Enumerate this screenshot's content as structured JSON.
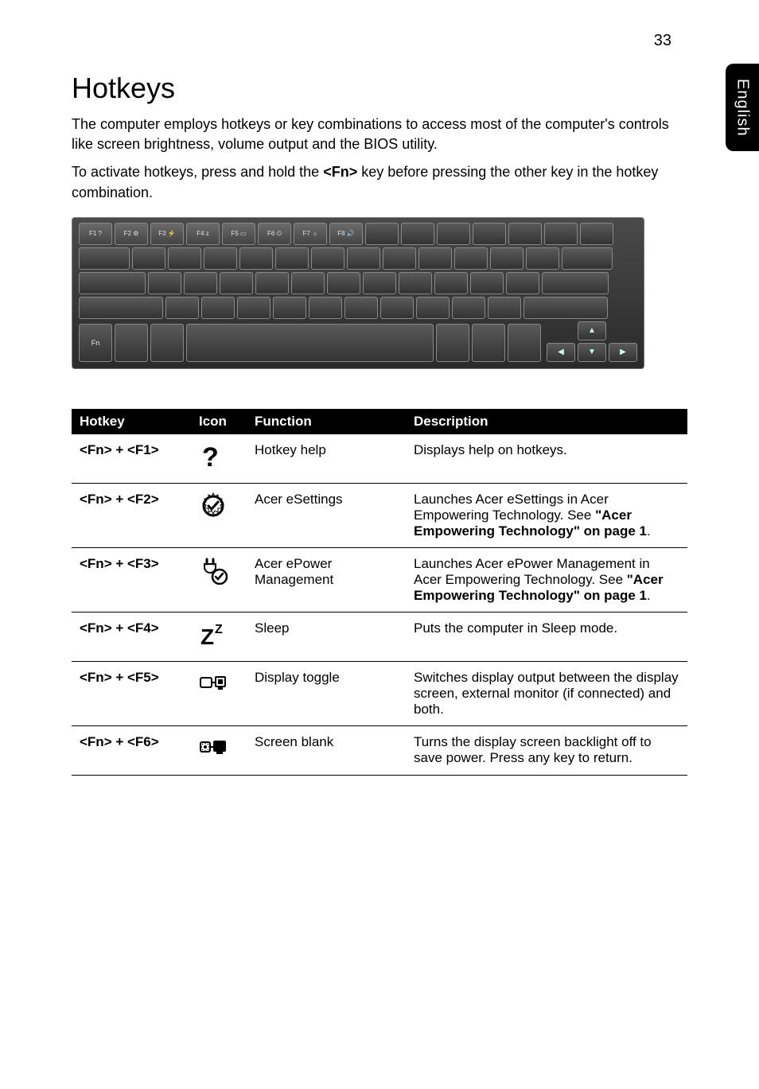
{
  "page": {
    "number": "33",
    "side_tab": "English",
    "heading": "Hotkeys",
    "intro1": "The computer employs hotkeys or key combinations to access most of the computer's controls like screen brightness, volume output and the BIOS utility.",
    "intro2_a": "To activate hotkeys, press and hold the ",
    "intro2_key": "<Fn>",
    "intro2_b": " key before pressing the other key in the hotkey combination."
  },
  "table": {
    "headers": {
      "hotkey": "Hotkey",
      "icon": "Icon",
      "func": "Function",
      "desc": "Description"
    },
    "rows": [
      {
        "hotkey": "<Fn> + <F1>",
        "icon": "question",
        "func": "Hotkey help",
        "desc_plain": "Displays help on hotkeys."
      },
      {
        "hotkey": "<Fn> + <F2>",
        "icon": "gear-check",
        "func": "Acer eSettings",
        "desc_pre": "Launches Acer eSettings in Acer Empowering Technology. See ",
        "desc_bold": "\"Acer Empowering Technology\" on page 1",
        "desc_post": "."
      },
      {
        "hotkey": "<Fn> + <F3>",
        "icon": "plug-check",
        "func": "Acer ePower Management",
        "desc_pre": "Launches Acer ePower Management in Acer Empowering Technology. See ",
        "desc_bold": "\"Acer Empowering Technology\" on page 1",
        "desc_post": "."
      },
      {
        "hotkey": "<Fn> + <F4>",
        "icon": "sleep-z",
        "func": "Sleep",
        "desc_plain": "Puts the computer in Sleep mode."
      },
      {
        "hotkey": "<Fn> + <F5>",
        "icon": "display-toggle",
        "func": "Display toggle",
        "desc_plain": "Switches display output between the display screen, external monitor (if connected) and both."
      },
      {
        "hotkey": "<Fn> + <F6>",
        "icon": "screen-blank",
        "func": "Screen blank",
        "desc_plain": "Turns the display screen backlight off to save power. Press any key to return."
      }
    ]
  },
  "fnkeys": [
    "F1 ?",
    "F2 ⚙",
    "F3 ⚡",
    "F4 z",
    "F5 ▭",
    "F6 ⏻",
    "F7 ☼",
    "F8 🔊"
  ]
}
